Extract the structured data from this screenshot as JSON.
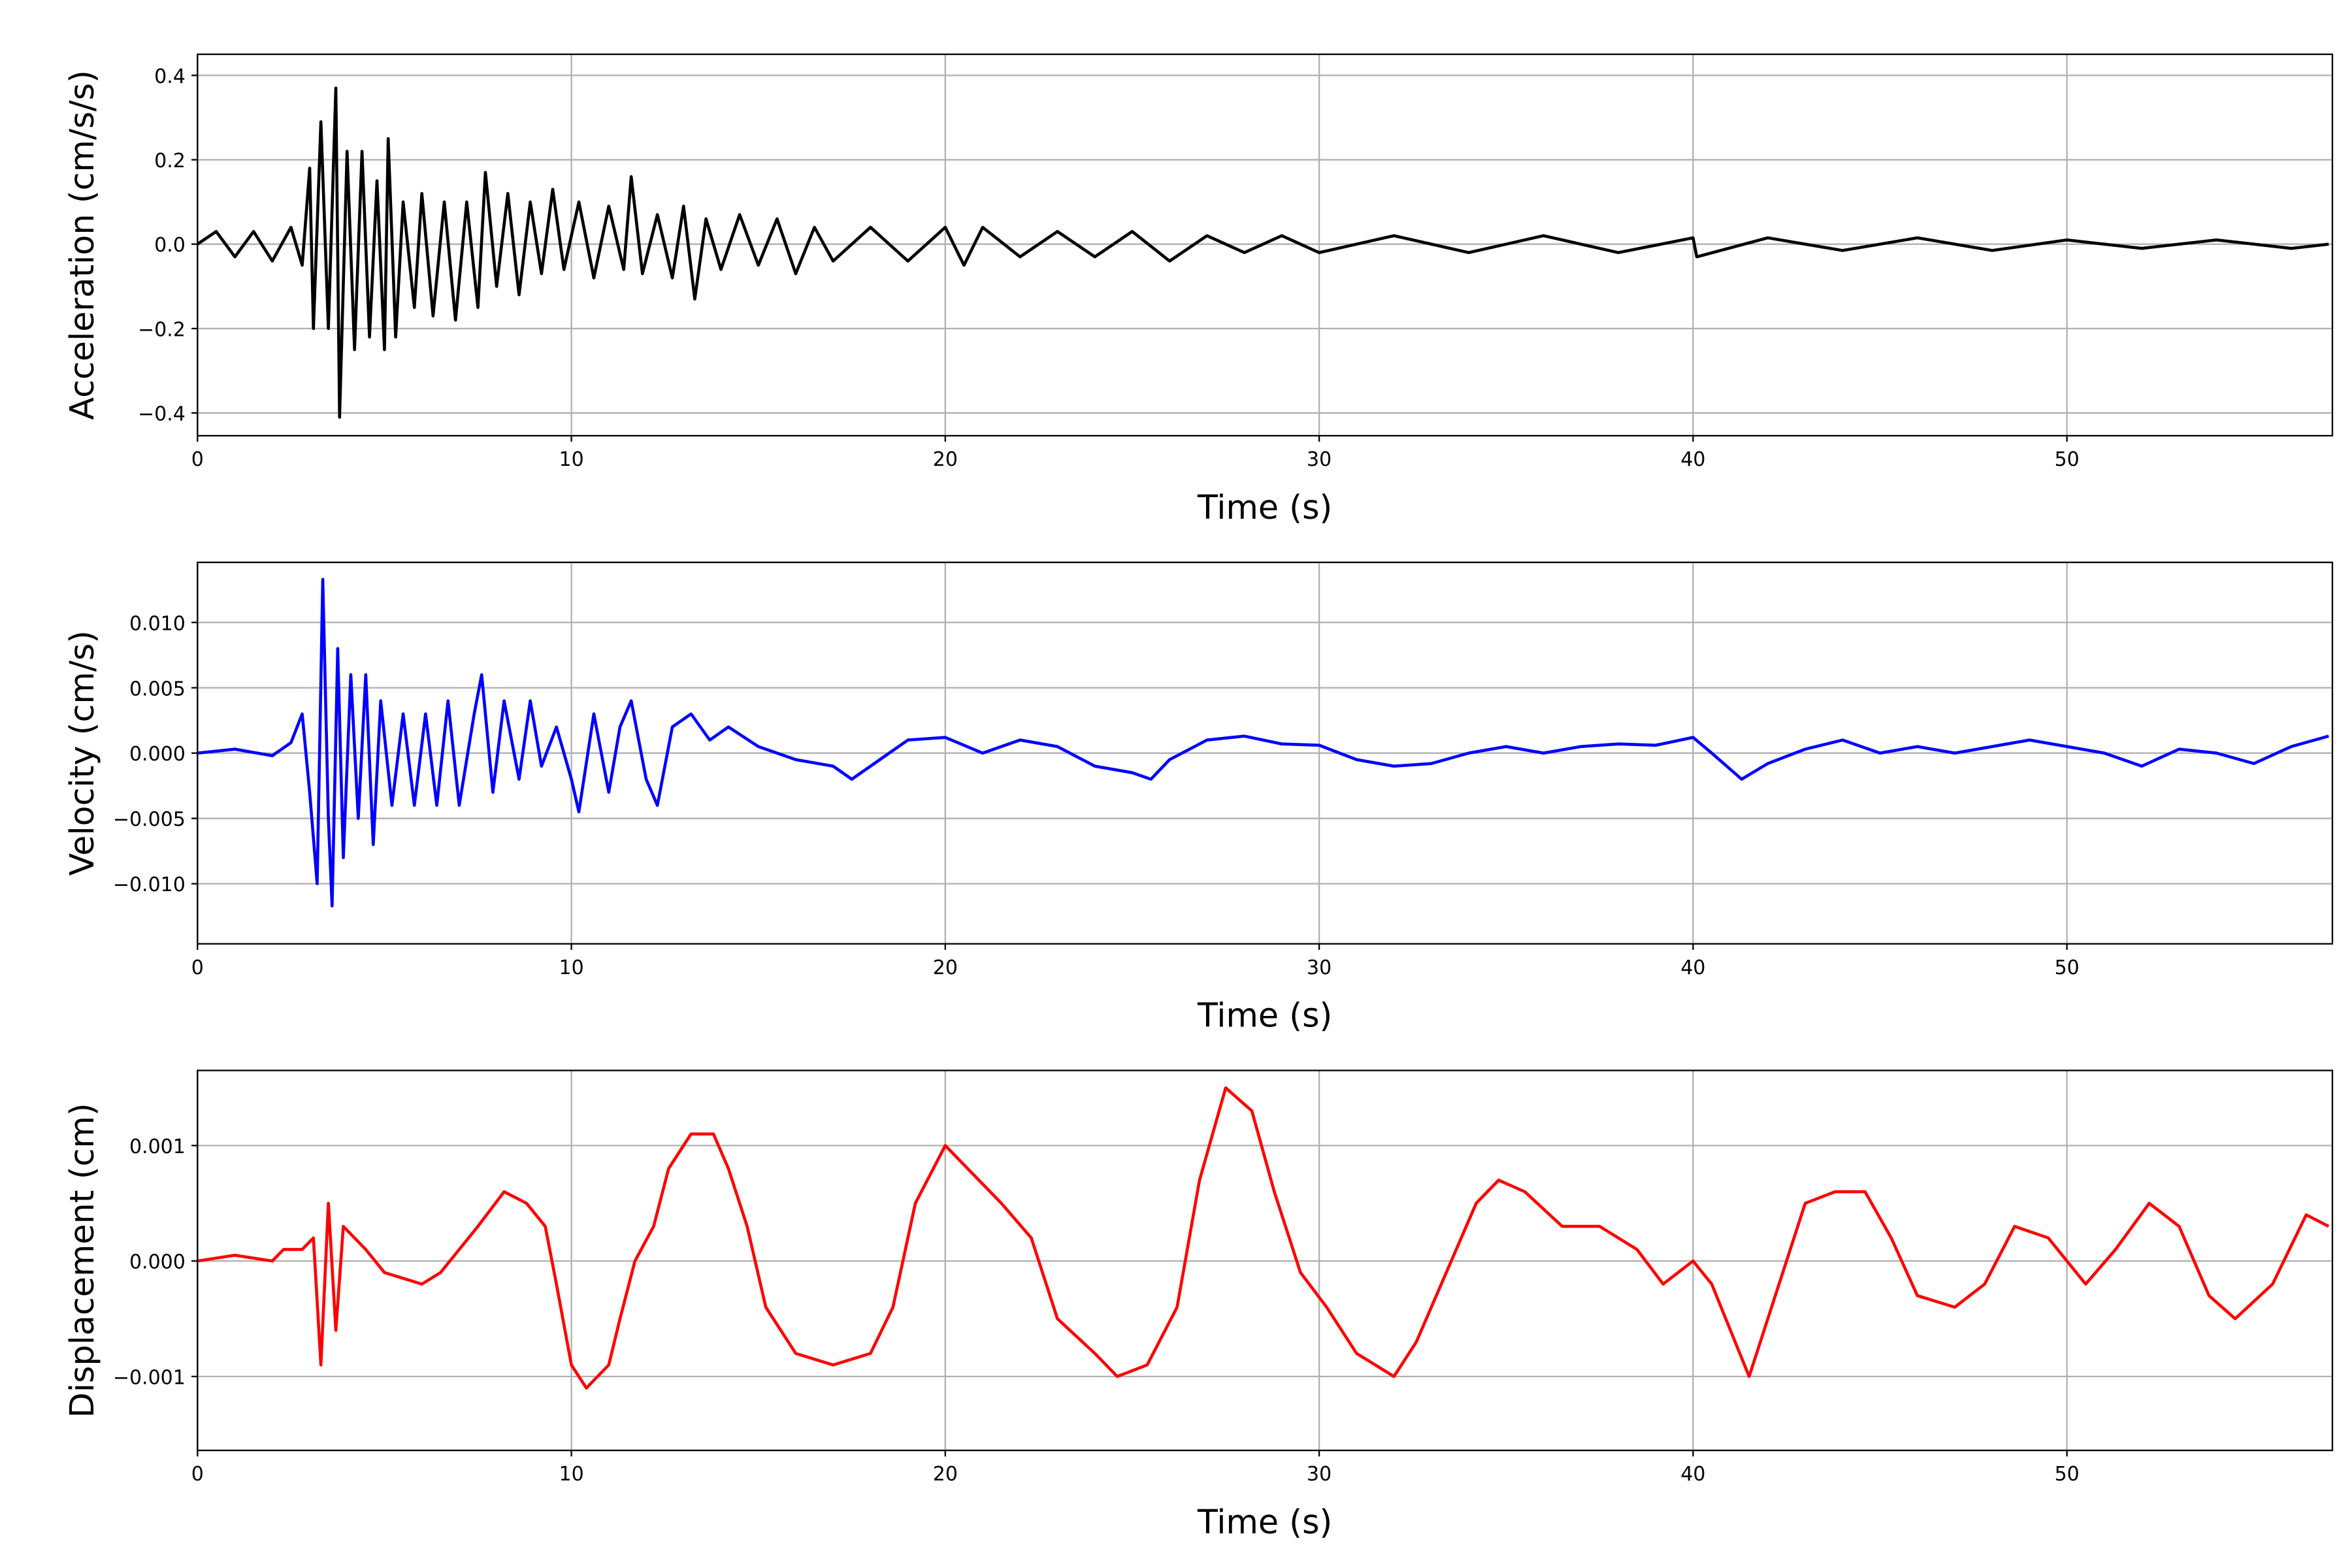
{
  "chart_data": [
    {
      "type": "line",
      "xlabel": "Time (s)",
      "ylabel": "Acceleration (cm/s/s)",
      "color": "#000000",
      "grid": true,
      "xlim": [
        0,
        57.1
      ],
      "xticks": [
        0,
        10,
        20,
        30,
        40,
        50
      ],
      "ylim": [
        -0.454,
        0.45
      ],
      "yticks": [
        {
          "value": -0.4,
          "label": "−0.4"
        },
        {
          "value": -0.2,
          "label": "−0.2"
        },
        {
          "value": 0,
          "label": "0.0"
        },
        0.2,
        0.4
      ],
      "x": [
        0,
        0.5,
        1,
        1.5,
        2,
        2.5,
        2.8,
        3.0,
        3.1,
        3.3,
        3.5,
        3.7,
        3.8,
        4.0,
        4.2,
        4.4,
        4.6,
        4.8,
        5.0,
        5.1,
        5.3,
        5.5,
        5.8,
        6.0,
        6.3,
        6.6,
        6.9,
        7.2,
        7.5,
        7.7,
        8.0,
        8.3,
        8.6,
        8.9,
        9.2,
        9.5,
        9.8,
        10.2,
        10.6,
        11.0,
        11.4,
        11.6,
        11.9,
        12.3,
        12.7,
        13.0,
        13.3,
        13.6,
        14,
        14.5,
        15,
        15.5,
        16,
        16.5,
        17,
        18,
        19,
        20,
        20.5,
        21,
        22,
        23,
        24,
        25,
        26,
        27,
        28,
        29,
        30,
        32,
        34,
        36,
        38,
        40,
        40.1,
        42,
        44,
        46,
        48,
        50,
        52,
        54,
        56,
        57
      ],
      "values": [
        0,
        0.03,
        -0.03,
        0.03,
        -0.04,
        0.04,
        -0.05,
        0.18,
        -0.2,
        0.29,
        -0.2,
        0.37,
        -0.41,
        0.22,
        -0.25,
        0.22,
        -0.22,
        0.15,
        -0.25,
        0.25,
        -0.22,
        0.1,
        -0.15,
        0.12,
        -0.17,
        0.1,
        -0.18,
        0.1,
        -0.15,
        0.17,
        -0.1,
        0.12,
        -0.12,
        0.1,
        -0.07,
        0.13,
        -0.06,
        0.1,
        -0.08,
        0.09,
        -0.06,
        0.16,
        -0.07,
        0.07,
        -0.08,
        0.09,
        -0.13,
        0.06,
        -0.06,
        0.07,
        -0.05,
        0.06,
        -0.07,
        0.04,
        -0.04,
        0.04,
        -0.04,
        0.04,
        -0.05,
        0.04,
        -0.03,
        0.03,
        -0.03,
        0.03,
        -0.04,
        0.02,
        -0.02,
        0.02,
        -0.02,
        0.02,
        -0.02,
        0.02,
        -0.02,
        0.015,
        -0.03,
        0.015,
        -0.015,
        0.015,
        -0.015,
        0.01,
        -0.01,
        0.01,
        -0.01,
        0
      ]
    },
    {
      "type": "line",
      "xlabel": "Time (s)",
      "ylabel": "Velocity (cm/s)",
      "color": "#0000ff",
      "grid": true,
      "xlim": [
        0,
        57.1
      ],
      "xticks": [
        0,
        10,
        20,
        30,
        40,
        50
      ],
      "ylim": [
        -0.0146,
        0.0146
      ],
      "yticks": [
        {
          "value": -0.01,
          "label": "−0.010"
        },
        {
          "value": -0.005,
          "label": "−0.005"
        },
        {
          "value": 0,
          "label": "0.000"
        },
        {
          "value": 0.005,
          "label": "0.005"
        },
        {
          "value": 0.01,
          "label": "0.010"
        }
      ],
      "x": [
        0,
        1,
        2,
        2.5,
        2.8,
        3.0,
        3.2,
        3.35,
        3.5,
        3.6,
        3.75,
        3.9,
        4.1,
        4.3,
        4.5,
        4.7,
        4.9,
        5.2,
        5.5,
        5.8,
        6.1,
        6.4,
        6.7,
        7.0,
        7.4,
        7.6,
        7.9,
        8.2,
        8.6,
        8.9,
        9.2,
        9.6,
        10,
        10.2,
        10.6,
        11,
        11.3,
        11.6,
        12,
        12.3,
        12.7,
        13.2,
        13.7,
        14.2,
        15,
        16,
        17,
        17.5,
        18.5,
        19,
        20,
        21,
        22,
        23,
        24,
        25,
        25.5,
        26,
        27,
        28,
        29,
        30,
        31,
        32,
        33,
        34,
        35,
        36,
        37,
        38,
        39,
        40,
        40.5,
        41.3,
        42,
        43,
        44,
        45,
        46,
        47,
        48,
        49,
        50,
        51,
        52,
        53,
        54,
        55,
        56,
        57
      ],
      "values": [
        0,
        0.0003,
        -0.0002,
        0.0008,
        0.003,
        -0.003,
        -0.01,
        0.0133,
        -0.005,
        -0.0117,
        0.008,
        -0.008,
        0.006,
        -0.005,
        0.006,
        -0.007,
        0.004,
        -0.004,
        0.003,
        -0.004,
        0.003,
        -0.004,
        0.004,
        -0.004,
        0.003,
        0.006,
        -0.003,
        0.004,
        -0.002,
        0.004,
        -0.001,
        0.002,
        -0.002,
        -0.0045,
        0.003,
        -0.003,
        0.002,
        0.004,
        -0.002,
        -0.004,
        0.002,
        0.003,
        0.001,
        0.002,
        0.0005,
        -0.0005,
        -0.001,
        -0.002,
        0,
        0.001,
        0.0012,
        0,
        0.001,
        0.0005,
        -0.001,
        -0.0015,
        -0.002,
        -0.0005,
        0.001,
        0.0013,
        0.0007,
        0.0006,
        -0.0005,
        -0.001,
        -0.0008,
        0,
        0.0005,
        0,
        0.0005,
        0.0007,
        0.0006,
        0.0012,
        0,
        -0.002,
        -0.0008,
        0.0003,
        0.001,
        0,
        0.0005,
        0,
        0.0005,
        0.001,
        0.0005,
        0,
        -0.001,
        0.0003,
        0,
        -0.0008,
        0.0005,
        0.0013
      ]
    },
    {
      "type": "line",
      "xlabel": "Time (s)",
      "ylabel": "Displacement (cm)",
      "color": "#ff0000",
      "grid": true,
      "xlim": [
        0,
        57.1
      ],
      "xticks": [
        0,
        10,
        20,
        30,
        40,
        50
      ],
      "ylim": [
        -0.00164,
        0.00165
      ],
      "yticks": [
        {
          "value": -0.001,
          "label": "−0.001"
        },
        {
          "value": 0,
          "label": "0.000"
        },
        0.001
      ],
      "x": [
        0,
        1,
        2,
        2.3,
        2.8,
        3.1,
        3.3,
        3.5,
        3.7,
        3.9,
        4.5,
        5,
        6,
        6.5,
        7,
        7.5,
        8.2,
        8.8,
        9.3,
        9.6,
        10,
        10.4,
        11,
        11.3,
        11.7,
        12.2,
        12.6,
        13.2,
        13.8,
        14.2,
        14.7,
        15.2,
        16,
        17,
        18,
        18.6,
        19.2,
        20,
        20.6,
        21.5,
        22.3,
        23,
        24,
        24.6,
        25.4,
        26.2,
        26.8,
        27.5,
        28.2,
        28.8,
        29.5,
        30.2,
        31,
        32,
        32.6,
        33.4,
        34.2,
        34.8,
        35.5,
        36.5,
        37.5,
        38.5,
        39.2,
        40,
        40.5,
        41.5,
        42.3,
        43,
        43.8,
        44.6,
        45.3,
        46,
        47,
        47.8,
        48.6,
        49.5,
        50.5,
        51.3,
        52.2,
        53,
        53.8,
        54.5,
        55.5,
        56.4,
        57
      ],
      "values": [
        0,
        5e-05,
        0,
        0.0001,
        0.0001,
        0.0002,
        -0.0009,
        0.0005,
        -0.0006,
        0.0003,
        0.0001,
        -0.0001,
        -0.0002,
        -0.0001,
        0.0001,
        0.0003,
        0.0006,
        0.0005,
        0.0003,
        -0.0002,
        -0.0009,
        -0.0011,
        -0.0009,
        -0.0005,
        0,
        0.0003,
        0.0008,
        0.0011,
        0.0011,
        0.0008,
        0.0003,
        -0.0004,
        -0.0008,
        -0.0009,
        -0.0008,
        -0.0004,
        0.0005,
        0.001,
        0.0008,
        0.0005,
        0.0002,
        -0.0005,
        -0.0008,
        -0.001,
        -0.0009,
        -0.0004,
        0.0007,
        0.0015,
        0.0013,
        0.0006,
        -0.0001,
        -0.0004,
        -0.0008,
        -0.001,
        -0.0007,
        -0.0001,
        0.0005,
        0.0007,
        0.0006,
        0.0003,
        0.0003,
        0.0001,
        -0.0002,
        0,
        -0.0002,
        -0.001,
        -0.0002,
        0.0005,
        0.0006,
        0.0006,
        0.0002,
        -0.0003,
        -0.0004,
        -0.0002,
        0.0003,
        0.0002,
        -0.0002,
        0.0001,
        0.0005,
        0.0003,
        -0.0003,
        -0.0005,
        -0.0002,
        0.0004,
        0.0003
      ]
    }
  ]
}
